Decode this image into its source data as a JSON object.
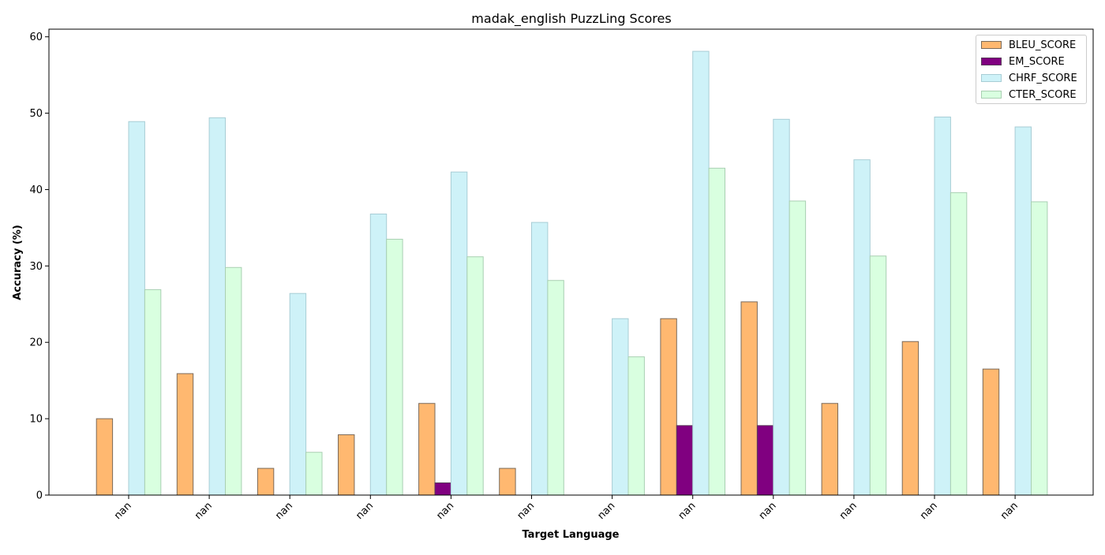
{
  "chart_data": {
    "type": "bar",
    "title": "madak_english PuzzLing Scores",
    "xlabel": "Target Language",
    "ylabel": "Accuracy (%)",
    "ylim": [
      0,
      61
    ],
    "yticks": [
      0,
      10,
      20,
      30,
      40,
      50,
      60
    ],
    "categories": [
      "nan",
      "nan",
      "nan",
      "nan",
      "nan",
      "nan",
      "nan",
      "nan",
      "nan",
      "nan",
      "nan",
      "nan"
    ],
    "legend_position": "top-right",
    "grid": false,
    "series": [
      {
        "name": "BLEU_SCORE",
        "color": "#ffb870",
        "edge": "#7a6a5a",
        "values": [
          10.0,
          15.9,
          3.5,
          7.9,
          12.0,
          3.5,
          0.0,
          23.1,
          25.3,
          12.0,
          20.1,
          16.5
        ]
      },
      {
        "name": "EM_SCORE",
        "color": "#800080",
        "edge": "#5a3a5a",
        "values": [
          0.0,
          0.0,
          0.0,
          0.0,
          1.6,
          0.0,
          0.0,
          9.1,
          9.1,
          0.0,
          0.0,
          0.0
        ]
      },
      {
        "name": "CHRF_SCORE",
        "color": "#cef2f8",
        "edge": "#a8cdd5",
        "values": [
          48.9,
          49.4,
          26.4,
          36.8,
          42.3,
          35.7,
          23.1,
          58.1,
          49.2,
          43.9,
          49.5,
          48.2
        ]
      },
      {
        "name": "CTER_SCORE",
        "color": "#d9ffe0",
        "edge": "#a9cfb2",
        "values": [
          26.9,
          29.8,
          5.6,
          33.5,
          31.2,
          28.1,
          18.1,
          42.8,
          38.5,
          31.3,
          39.6,
          38.4
        ]
      }
    ]
  }
}
